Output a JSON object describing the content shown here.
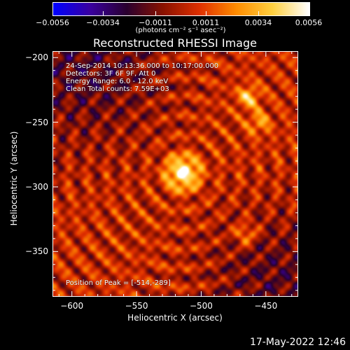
{
  "colorbar": {
    "ticks": [
      {
        "label": "−0.0056",
        "value": -0.0056
      },
      {
        "label": "−0.0034",
        "value": -0.0034
      },
      {
        "label": "−0.0011",
        "value": -0.0011
      },
      {
        "label": "0.0011",
        "value": 0.0011
      },
      {
        "label": "0.0034",
        "value": 0.0034
      },
      {
        "label": "0.0056",
        "value": 0.0056
      }
    ],
    "range": [
      -0.0056,
      0.0056
    ],
    "units": "(photons cm⁻² s⁻¹ asec⁻²)",
    "colormap": [
      "#0000ff",
      "#3a00a0",
      "#2a0030",
      "#8a1200",
      "#e03000",
      "#ff8c00",
      "#ffd040",
      "#ffffff"
    ]
  },
  "chart_data": {
    "type": "heatmap",
    "title": "Reconstructed RHESSI Image",
    "xlabel": "Heliocentric X (arcsec)",
    "ylabel": "Heliocentric Y (arcsec)",
    "xlim": [
      -615,
      -425
    ],
    "ylim": [
      -385,
      -195
    ],
    "xticks": [
      {
        "label": "−600",
        "value": -600
      },
      {
        "label": "−550",
        "value": -550
      },
      {
        "label": "−500",
        "value": -500
      },
      {
        "label": "−450",
        "value": -450
      }
    ],
    "yticks": [
      {
        "label": "−200",
        "value": -200
      },
      {
        "label": "−250",
        "value": -250
      },
      {
        "label": "−300",
        "value": -300
      },
      {
        "label": "−350",
        "value": -350
      }
    ],
    "peak": {
      "x": -514,
      "y": -289,
      "value": 0.0056
    },
    "secondary_sources": [
      {
        "x": -463,
        "y": -230,
        "value": 0.0034
      },
      {
        "x": -465,
        "y": -337,
        "value": 0.0028
      },
      {
        "x": -455,
        "y": -250,
        "value": 0.0025
      }
    ],
    "annotations": [
      "24-Sep-2014 10:13:36.000 to 10:17:00.000",
      "Detectors: 3F 6F 9F, Att 0",
      "Energy Range: 6.0 - 12.0 keV",
      "Clean    Total counts: 7.59E+03"
    ],
    "peak_label": "Position of Peak = [-514,-289]"
  },
  "footer": {
    "timestamp": "17-May-2022 12:46"
  }
}
